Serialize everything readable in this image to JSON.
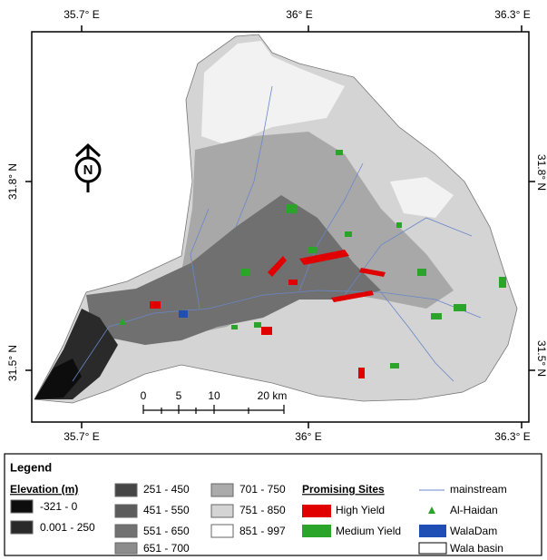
{
  "map": {
    "longitude_ticks": {
      "top": [
        "35.7° E",
        "36° E",
        "36.3° E"
      ],
      "bottom": [
        "35.7° E",
        "36° E",
        "36.3° E"
      ]
    },
    "latitude_ticks": {
      "left": [
        "31.8° N",
        "31.5° N"
      ],
      "right": [
        "31.8° N",
        "31.5° N"
      ]
    },
    "north_arrow": "N",
    "scale_bar": [
      "0",
      "5",
      "10",
      "20 km"
    ],
    "legend": {
      "title": "Legend",
      "elevation": {
        "title": "Elevation (m)",
        "classes": [
          "-321 - 0",
          "0.001 - 250",
          "251 - 450",
          "451 - 550",
          "551 - 650",
          "651 - 700",
          "701 - 750",
          "751 - 850",
          "851 - 997"
        ]
      },
      "sites": {
        "title": "Promising Sites",
        "items": [
          "High Yield",
          "Medium Yield"
        ]
      },
      "features": [
        "mainstream",
        "Al-Haidan",
        "WalaDam",
        "Wala basin"
      ]
    }
  }
}
